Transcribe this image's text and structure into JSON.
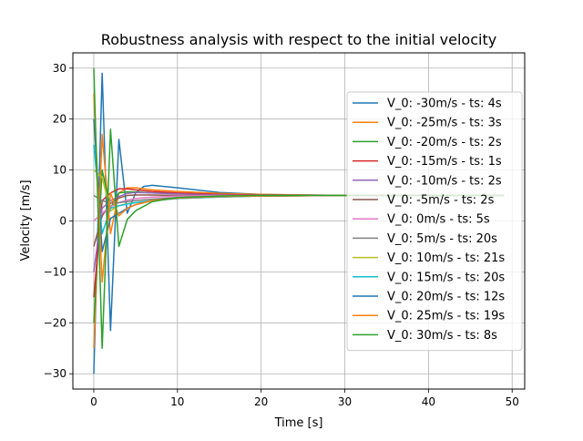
{
  "chart_data": {
    "type": "line",
    "title": "Robustness analysis with respect to the initial velocity",
    "xlabel": "Time [s]",
    "ylabel": "Velocity [m/s]",
    "xlim": [
      -2.5,
      51.5
    ],
    "ylim": [
      -33,
      33
    ],
    "xticks": [
      0,
      10,
      20,
      30,
      40,
      50
    ],
    "yticks": [
      -30,
      -20,
      -10,
      0,
      10,
      20,
      30
    ],
    "grid": true,
    "legend_position": "right",
    "series": [
      {
        "name": "V_0: -30m/s - ts: 4s",
        "color": "#1f77b4",
        "x": [
          0,
          1,
          2,
          3,
          4,
          5,
          6,
          7,
          10,
          15,
          20,
          30,
          40,
          49
        ],
        "y": [
          -30,
          29,
          -21.5,
          16,
          1.5,
          5.5,
          6.8,
          7.0,
          6.5,
          5.6,
          5.2,
          5.0,
          5.0,
          5.0
        ]
      },
      {
        "name": "V_0: -25m/s - ts: 3s",
        "color": "#ff7f0e",
        "x": [
          0,
          1,
          2,
          3,
          4,
          5,
          7,
          10,
          15,
          20,
          30,
          40,
          49
        ],
        "y": [
          -25,
          17,
          -2.5,
          5.5,
          6.5,
          6.5,
          6.1,
          5.8,
          5.4,
          5.2,
          5.0,
          5.0,
          5.0
        ]
      },
      {
        "name": "V_0: -20m/s - ts: 2s",
        "color": "#2ca02c",
        "x": [
          0,
          1,
          2,
          3,
          4,
          5,
          7,
          10,
          15,
          20,
          30,
          40,
          49
        ],
        "y": [
          -20,
          10,
          2.5,
          5.5,
          5.7,
          5.7,
          5.5,
          5.4,
          5.2,
          5.1,
          5.0,
          5.0,
          5.0
        ]
      },
      {
        "name": "V_0: -15m/s - ts: 1s",
        "color": "#d62728",
        "x": [
          0,
          1,
          2,
          3,
          4,
          5,
          7,
          10,
          15,
          20,
          30,
          40,
          49
        ],
        "y": [
          -15,
          4.0,
          5.5,
          6.3,
          6.3,
          6.1,
          5.8,
          5.5,
          5.2,
          5.1,
          5.0,
          5.0,
          5.0
        ]
      },
      {
        "name": "V_0: -10m/s - ts: 2s",
        "color": "#9467bd",
        "x": [
          0,
          1,
          2,
          3,
          4,
          5,
          7,
          10,
          15,
          20,
          30,
          40,
          49
        ],
        "y": [
          -10,
          2.5,
          4.0,
          4.8,
          5.4,
          5.6,
          5.5,
          5.3,
          5.1,
          5.0,
          5.0,
          5.0,
          5.0
        ]
      },
      {
        "name": "V_0: -5m/s - ts: 2s",
        "color": "#8c564b",
        "x": [
          0,
          1,
          2,
          3,
          4,
          5,
          7,
          10,
          15,
          20,
          30,
          40,
          49
        ],
        "y": [
          -5,
          1.0,
          3.5,
          4.5,
          5.0,
          5.1,
          5.1,
          5.0,
          5.0,
          5.0,
          5.0,
          5.0,
          5.0
        ]
      },
      {
        "name": "V_0: 0m/s - ts: 5s",
        "color": "#e377c2",
        "x": [
          0,
          1,
          2,
          3,
          4,
          5,
          7,
          10,
          15,
          20,
          30,
          40,
          49
        ],
        "y": [
          0,
          1.5,
          2.8,
          3.6,
          4.1,
          4.4,
          4.7,
          4.9,
          5.0,
          5.0,
          5.0,
          5.0,
          5.0
        ]
      },
      {
        "name": "V_0: 5m/s - ts: 20s",
        "color": "#7f7f7f",
        "x": [
          0,
          1,
          2,
          3,
          4,
          5,
          7,
          10,
          15,
          20,
          30,
          40,
          49
        ],
        "y": [
          5,
          4.0,
          3.5,
          3.6,
          3.8,
          4.0,
          4.3,
          4.6,
          4.8,
          4.9,
          5.0,
          5.0,
          5.0
        ]
      },
      {
        "name": "V_0: 10m/s - ts: 21s",
        "color": "#bcbd22",
        "x": [
          0,
          1,
          2,
          3,
          4,
          5,
          7,
          10,
          15,
          20,
          30,
          40,
          49
        ],
        "y": [
          10,
          8.5,
          2.0,
          3.0,
          3.4,
          3.6,
          4.0,
          4.4,
          4.7,
          4.9,
          5.0,
          5.0,
          5.0
        ]
      },
      {
        "name": "V_0: 15m/s - ts: 20s",
        "color": "#17becf",
        "x": [
          0,
          1,
          2,
          3,
          4,
          5,
          7,
          10,
          15,
          20,
          30,
          40,
          49
        ],
        "y": [
          15,
          -2.5,
          2.5,
          3.0,
          3.3,
          3.6,
          4.0,
          4.4,
          4.7,
          4.9,
          5.0,
          5.0,
          5.0
        ]
      },
      {
        "name": "V_0: 20m/s - ts: 12s",
        "color": "#1f77b4",
        "x": [
          0,
          1,
          2,
          3,
          4,
          5,
          7,
          10,
          15,
          20,
          30,
          40,
          49
        ],
        "y": [
          20,
          -6,
          0.5,
          1.5,
          2.5,
          3.2,
          4.0,
          4.5,
          4.8,
          4.9,
          5.0,
          5.0,
          5.0
        ]
      },
      {
        "name": "V_0: 25m/s - ts: 19s",
        "color": "#ff7f0e",
        "x": [
          0,
          1,
          2,
          3,
          4,
          5,
          7,
          10,
          15,
          20,
          30,
          40,
          49
        ],
        "y": [
          25,
          -12,
          5.5,
          1.0,
          2.5,
          3.2,
          4.0,
          4.5,
          4.8,
          4.9,
          5.0,
          5.0,
          5.0
        ]
      },
      {
        "name": "V_0: 30m/s - ts: 8s",
        "color": "#2ca02c",
        "x": [
          0,
          1,
          2,
          3,
          4,
          5,
          7,
          10,
          15,
          20,
          30,
          40,
          49
        ],
        "y": [
          30,
          -25,
          18,
          -5,
          0.3,
          2.0,
          3.8,
          4.6,
          4.9,
          5.0,
          5.0,
          5.0,
          5.0
        ]
      }
    ]
  }
}
